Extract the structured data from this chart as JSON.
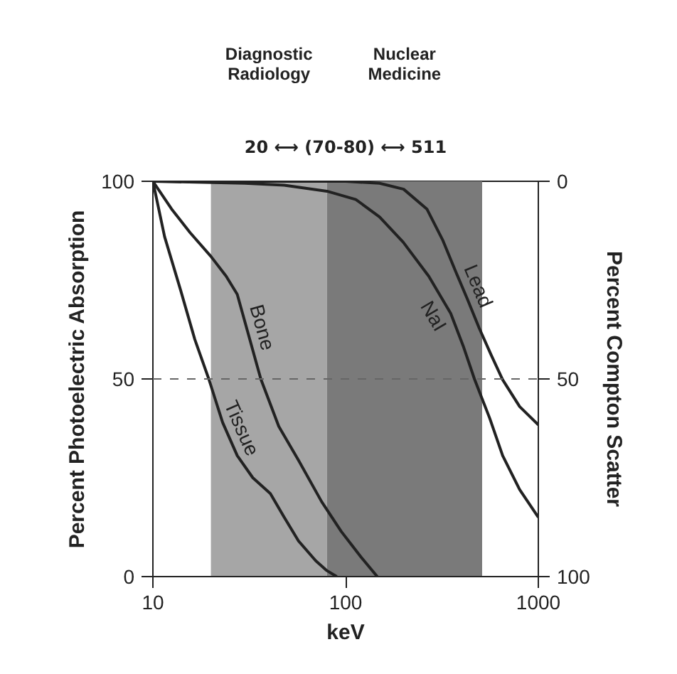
{
  "chart_data": {
    "type": "line",
    "xlabel": "keV",
    "ylabel": "Percent Photoelectric Absorption",
    "y2label": "Percent Compton Scatter",
    "log": "x",
    "xlim": [
      10,
      1000
    ],
    "xticks": [
      10,
      100,
      1000
    ],
    "ylim": [
      0,
      100
    ],
    "yticks": [
      0,
      50,
      100
    ],
    "y2lim": [
      100,
      0
    ],
    "y2ticks": [
      0,
      50,
      100
    ],
    "grid": false,
    "line_style": "solid",
    "series": [
      {
        "name": "Tissue",
        "color": "#222222",
        "x": [
          10,
          11.5,
          13.9,
          16.5,
          19.5,
          23,
          27.4,
          33,
          40.7,
          48,
          57,
          70,
          80,
          90
        ],
        "values": [
          100,
          86,
          72.6,
          60,
          50,
          39,
          30.6,
          25,
          21,
          15,
          9,
          4,
          1.5,
          0
        ]
      },
      {
        "name": "Bone",
        "color": "#222222",
        "x": [
          10,
          12.5,
          15.6,
          20,
          24,
          27.4,
          31,
          36.3,
          45,
          57,
          75,
          95,
          120,
          146
        ],
        "values": [
          100,
          93,
          87,
          81,
          76,
          71.4,
          62,
          50,
          38,
          29.4,
          19,
          11.4,
          5,
          0
        ]
      },
      {
        "name": "NaI",
        "color": "#222222",
        "x": [
          10,
          30,
          48,
          80,
          113,
          150,
          199,
          270,
          351,
          410,
          466,
          560,
          653,
          800,
          1000
        ],
        "values": [
          100,
          99.5,
          99,
          97.5,
          95.4,
          91,
          84.6,
          76,
          66.6,
          58,
          50,
          40,
          30.6,
          22,
          15
        ]
      },
      {
        "name": "Lead",
        "color": "#222222",
        "x": [
          10,
          100,
          150,
          200,
          264,
          320,
          371,
          430,
          492,
          570,
          653,
          800,
          1000
        ],
        "values": [
          100,
          100,
          99.5,
          98,
          93,
          85,
          77.4,
          70,
          63,
          56,
          49.8,
          43,
          38.4
        ]
      }
    ],
    "bands": [
      {
        "axis": "x",
        "from": 20,
        "to": 80,
        "color": "#a6a6a6"
      },
      {
        "axis": "x",
        "from": 80,
        "to": 511,
        "color": "#7a7a7a"
      }
    ],
    "ref_lines": [
      {
        "axis": "y",
        "value": 50,
        "line_style": "dashed",
        "color": "#666666"
      }
    ],
    "annotations": [
      "Diagnostic Radiology",
      "Nuclear Medicine",
      "20 ⟷ (70-80) ⟷ 511"
    ]
  }
}
